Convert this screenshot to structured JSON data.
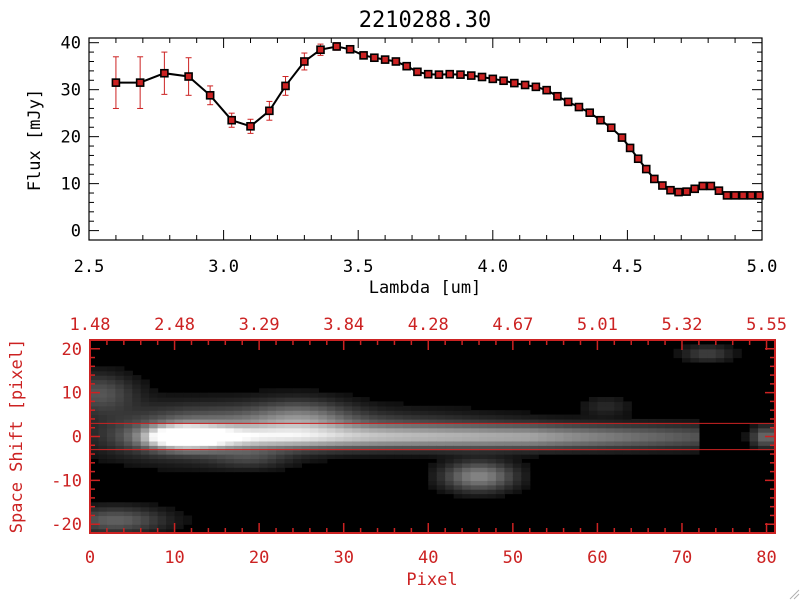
{
  "colors": {
    "red": "#cc2222",
    "black": "#000000",
    "background": "#ffffff"
  },
  "chart_data": [
    {
      "type": "line",
      "title": "2210288.30",
      "xlabel": "Lambda [um]",
      "ylabel": "Flux [mJy]",
      "xlim": [
        2.5,
        5.0
      ],
      "ylim": [
        -2,
        41
      ],
      "x_ticks": [
        "2.5",
        "3.0",
        "3.5",
        "4.0",
        "4.5",
        "5.0"
      ],
      "y_ticks": [
        "0",
        "10",
        "20",
        "30",
        "40"
      ],
      "grid": false,
      "series": [
        {
          "x": [
            2.6,
            2.69,
            2.78,
            2.87,
            2.95,
            3.03,
            3.1,
            3.17,
            3.23,
            3.3,
            3.36,
            3.42,
            3.47,
            3.52,
            3.56,
            3.6,
            3.64,
            3.68,
            3.72,
            3.76,
            3.8,
            3.84,
            3.88,
            3.92,
            3.96,
            4.0,
            4.04,
            4.08,
            4.12,
            4.16,
            4.2,
            4.24,
            4.28,
            4.32,
            4.36,
            4.4,
            4.44,
            4.48,
            4.51,
            4.54,
            4.57,
            4.6,
            4.63,
            4.66,
            4.69,
            4.72,
            4.75,
            4.78,
            4.81,
            4.84,
            4.87,
            4.9,
            4.93,
            4.96,
            4.99
          ],
          "y": [
            31.5,
            31.5,
            33.5,
            32.8,
            28.8,
            23.5,
            22.2,
            25.5,
            30.8,
            36.0,
            38.5,
            39.2,
            38.6,
            37.3,
            36.8,
            36.4,
            36.0,
            35.0,
            33.8,
            33.3,
            33.2,
            33.3,
            33.2,
            33.0,
            32.7,
            32.3,
            31.9,
            31.4,
            31.0,
            30.6,
            29.9,
            28.6,
            27.4,
            26.3,
            25.1,
            23.5,
            21.9,
            19.8,
            17.6,
            15.3,
            13.1,
            11.0,
            9.6,
            8.6,
            8.2,
            8.3,
            8.9,
            9.5,
            9.5,
            8.5,
            7.5,
            7.5,
            7.5,
            7.5,
            7.5
          ],
          "yerr": [
            5.5,
            5.5,
            4.5,
            4.0,
            2.0,
            1.5,
            1.5,
            2.0,
            2.0,
            1.8,
            1.2,
            0.8,
            0.6,
            0.5,
            0.4,
            0.4,
            0.4,
            0.4,
            0.4,
            0.4,
            0.4,
            0.4,
            0.4,
            0.4,
            0.4,
            0.4,
            0.4,
            0.4,
            0.4,
            0.4,
            0.4,
            0.4,
            0.4,
            0.4,
            0.4,
            0.4,
            0.4,
            0.4,
            0.4,
            0.4,
            0.4,
            0.4,
            0.4,
            0.4,
            0.4,
            0.4,
            0.4,
            0.4,
            0.4,
            0.4,
            0.4,
            0.4,
            0.4,
            0.4,
            0.4
          ]
        }
      ]
    },
    {
      "type": "heatmap",
      "xlabel": "Pixel",
      "ylabel": "Space Shift [pixel]",
      "xlim": [
        0,
        81
      ],
      "ylim": [
        -22,
        22
      ],
      "x_ticks": [
        "0",
        "10",
        "20",
        "30",
        "40",
        "50",
        "60",
        "70",
        "80"
      ],
      "y_ticks": [
        "-20",
        "-10",
        "0",
        "10",
        "20"
      ],
      "top_ticks": [
        "1.48",
        "2.48",
        "3.29",
        "3.84",
        "4.28",
        "4.67",
        "5.01",
        "5.32",
        "5.55"
      ],
      "extraction_window": [
        -3,
        3
      ],
      "colormap": "grayscale",
      "features": [
        {
          "x": 11,
          "y": 0,
          "amp": 1.0
        },
        {
          "x": 46,
          "y": -9,
          "amp": 0.45
        },
        {
          "x": 25,
          "y": 4,
          "amp": 0.3
        },
        {
          "x": 80,
          "y": 0,
          "amp": 0.35
        }
      ]
    }
  ]
}
